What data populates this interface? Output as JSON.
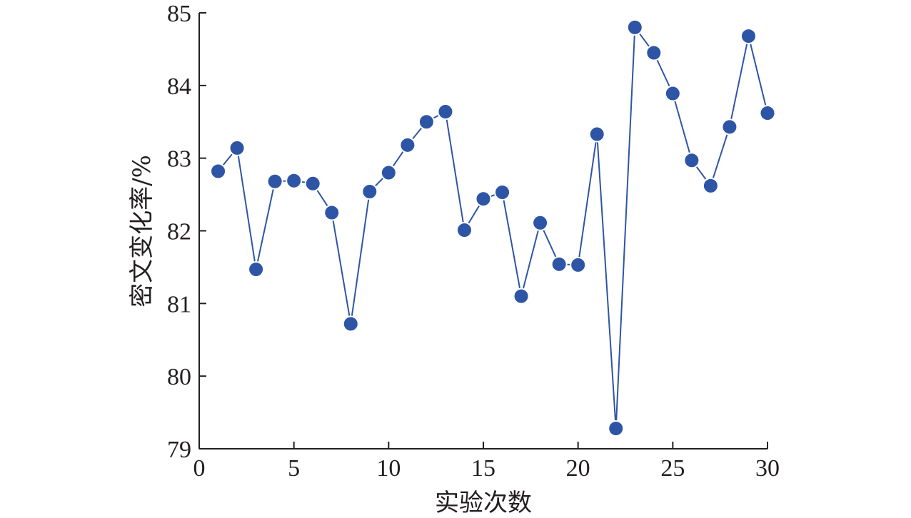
{
  "chart_data": {
    "type": "line",
    "xlabel": "实验次数",
    "ylabel": "密文变化率/%",
    "xlim": [
      0,
      30
    ],
    "ylim": [
      79,
      85
    ],
    "xticks": [
      0,
      5,
      10,
      15,
      20,
      25,
      30
    ],
    "yticks": [
      79,
      80,
      81,
      82,
      83,
      84,
      85
    ],
    "grid": false,
    "markers": "filled-circle",
    "colors": {
      "series": "#2e55a5",
      "axis": "#231f20"
    },
    "series": [
      {
        "x": [
          1,
          2,
          3,
          4,
          5,
          6,
          7,
          8,
          9,
          10,
          11,
          12,
          13,
          14,
          15,
          16,
          17,
          18,
          19,
          20,
          21,
          22,
          23,
          24,
          25,
          26,
          27,
          28,
          29,
          30
        ],
        "values": [
          82.82,
          83.14,
          81.47,
          82.68,
          82.69,
          82.65,
          82.25,
          80.72,
          82.54,
          82.8,
          83.18,
          83.5,
          83.64,
          82.01,
          82.44,
          82.53,
          81.1,
          82.11,
          81.54,
          81.53,
          83.33,
          79.28,
          84.8,
          84.45,
          83.89,
          82.97,
          82.62,
          83.43,
          84.68,
          83.62
        ]
      }
    ]
  }
}
